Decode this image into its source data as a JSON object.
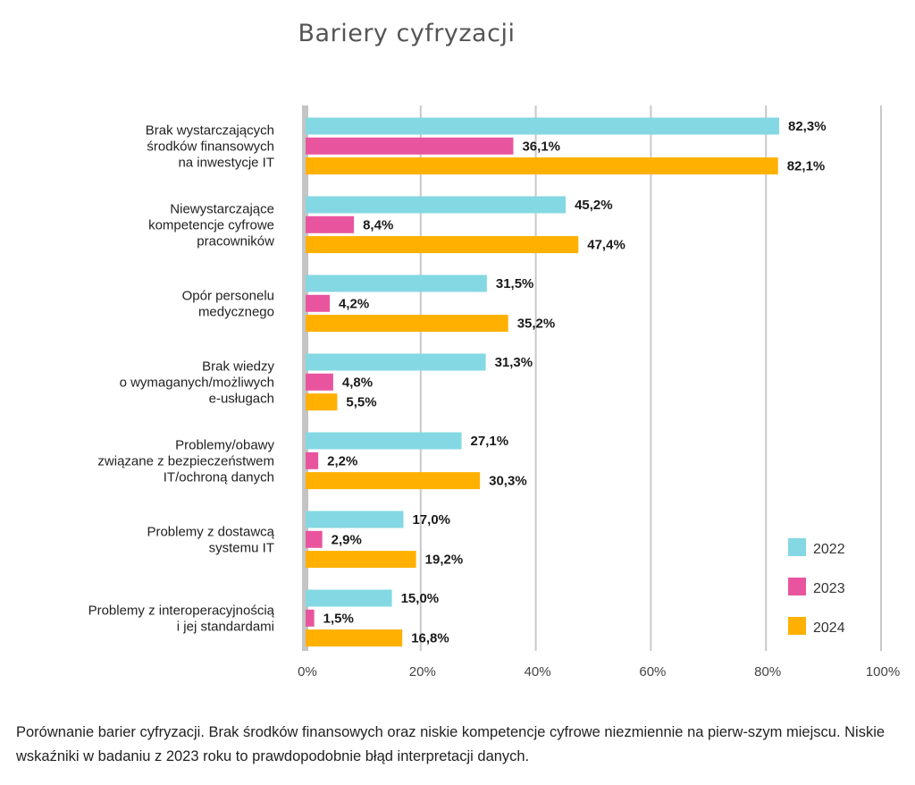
{
  "chart_data": {
    "type": "bar",
    "orientation": "horizontal",
    "title": "Bariery cyfryzacji",
    "categories": [
      [
        "Brak wystarczających",
        "środków finansowych",
        "na inwestycje IT"
      ],
      [
        "Niewystarczające",
        "kompetencje cyfrowe",
        "pracowników"
      ],
      [
        "Opór personelu",
        "medycznego"
      ],
      [
        "Brak wiedzy",
        "o wymaganych/możliwych",
        "e-usługach"
      ],
      [
        "Problemy/obawy",
        "związane z bezpieczeństwem",
        "IT/ochroną danych"
      ],
      [
        "Problemy z dostawcą",
        "systemu IT"
      ],
      [
        "Problemy z interoperacyjnością",
        "i jej standardami"
      ]
    ],
    "series": [
      {
        "name": "2022",
        "color": "#84d8e3",
        "values": [
          82.3,
          45.2,
          31.5,
          31.3,
          27.1,
          17.0,
          15.0
        ],
        "labels": [
          "82,3%",
          "45,2%",
          "31,5%",
          "31,3%",
          "27,1%",
          "17,0%",
          "15,0%"
        ]
      },
      {
        "name": "2023",
        "color": "#e8559e",
        "values": [
          36.1,
          8.4,
          4.2,
          4.8,
          2.2,
          2.9,
          1.5
        ],
        "labels": [
          "36,1%",
          "8,4%",
          "4,2%",
          "4,8%",
          "2,2%",
          "2,9%",
          "1,5%"
        ]
      },
      {
        "name": "2024",
        "color": "#ffb000",
        "values": [
          82.1,
          47.4,
          35.2,
          5.5,
          30.3,
          19.2,
          16.8
        ],
        "labels": [
          "82,1%",
          "47,4%",
          "35,2%",
          "5,5%",
          "30,3%",
          "19,2%",
          "16,8%"
        ]
      }
    ],
    "xlim": [
      0,
      100
    ],
    "xticks": [
      0,
      20,
      40,
      60,
      80,
      100
    ],
    "xtick_labels": [
      "0%",
      "20%",
      "40%",
      "60%",
      "80%",
      "100%"
    ],
    "grid": true,
    "legend_position": "bottom-right"
  },
  "caption": "Porównanie barier cyfryzacji. Brak środków finansowych oraz niskie kompetencje cyfrowe niezmiennie na pierw-szym miejscu. Niskie wskaźniki w badaniu z 2023 roku to prawdopodobnie błąd interpretacji danych."
}
